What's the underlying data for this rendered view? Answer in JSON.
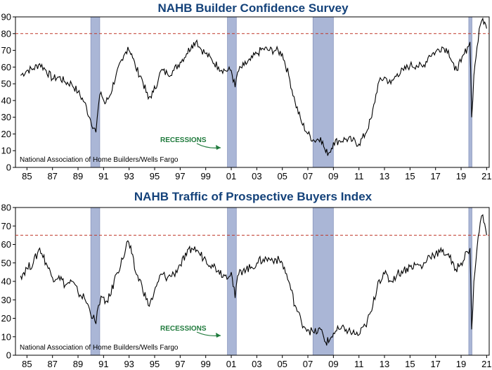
{
  "colors": {
    "title": "#14427a",
    "series": "#000000",
    "recession_fill": "#aab6d6",
    "reference_line": "#c0392b",
    "annotation": "#1f7a3c"
  },
  "chart_data": [
    {
      "type": "line",
      "title": "NAHB Builder Confidence Survey",
      "source": "National Association of Home Builders/Wells Fargo",
      "annotation": "RECESSIONS",
      "xlim": [
        1984.6,
        2021.7
      ],
      "ylim": [
        0,
        90
      ],
      "yticks": [
        0,
        10,
        20,
        30,
        40,
        50,
        60,
        70,
        80,
        90
      ],
      "xticks": [
        "85",
        "87",
        "89",
        "91",
        "93",
        "95",
        "97",
        "99",
        "01",
        "03",
        "05",
        "07",
        "09",
        "11",
        "13",
        "15",
        "17",
        "19",
        "21"
      ],
      "reference_line": 80,
      "recessions": [
        [
          1990.5,
          1991.2
        ],
        [
          2001.2,
          2001.9
        ],
        [
          2007.9,
          2009.5
        ],
        [
          2020.1,
          2020.35
        ]
      ],
      "series": [
        {
          "x": [
            1985,
            1985.5,
            1986,
            1986.5,
            1987,
            1987.5,
            1988,
            1988.5,
            1989,
            1989.5,
            1990,
            1990.4,
            1990.9,
            1991.1,
            1991.3,
            1991.6,
            1992,
            1992.5,
            1993,
            1993.4,
            1993.7,
            1994,
            1994.5,
            1995,
            1995.4,
            1995.8,
            1996,
            1996.5,
            1997,
            1997.5,
            1998,
            1998.4,
            1998.8,
            1999,
            1999.5,
            2000,
            2000.5,
            2001,
            2001.5,
            2001.8,
            2002,
            2002.5,
            2003,
            2003.5,
            2004,
            2004.5,
            2005,
            2005.5,
            2006,
            2006.5,
            2007,
            2007.5,
            2008,
            2008.5,
            2008.9,
            2009.2,
            2009.5,
            2010,
            2010.5,
            2011,
            2011.5,
            2012,
            2012.5,
            2013,
            2013.5,
            2014,
            2014.5,
            2015,
            2015.5,
            2016,
            2016.5,
            2017,
            2017.5,
            2018,
            2018.5,
            2019,
            2019.5,
            2020,
            2020.2,
            2020.33,
            2020.5,
            2020.75,
            2021,
            2021.2,
            2021.5
          ],
          "values": [
            55,
            58,
            59,
            62,
            58,
            53,
            54,
            51,
            50,
            45,
            39,
            30,
            21,
            37,
            45,
            38,
            43,
            56,
            64,
            72,
            68,
            60,
            53,
            41,
            45,
            53,
            58,
            56,
            58,
            63,
            68,
            73,
            76,
            72,
            68,
            64,
            60,
            58,
            58,
            48,
            57,
            61,
            64,
            68,
            71,
            70,
            70,
            68,
            55,
            39,
            27,
            20,
            16,
            18,
            9,
            9,
            15,
            16,
            17,
            16,
            14,
            20,
            30,
            50,
            54,
            50,
            56,
            58,
            61,
            61,
            60,
            67,
            69,
            72,
            70,
            58,
            63,
            72,
            75,
            30,
            55,
            72,
            85,
            89,
            83
          ]
        }
      ]
    },
    {
      "type": "line",
      "title": "NAHB Traffic of Prospective Buyers Index",
      "source": "National Association of Home Builders/Wells Fargo",
      "annotation": "RECESSIONS",
      "xlim": [
        1984.6,
        2021.7
      ],
      "ylim": [
        0,
        80
      ],
      "yticks": [
        0,
        10,
        20,
        30,
        40,
        50,
        60,
        70,
        80
      ],
      "xticks": [
        "85",
        "87",
        "89",
        "91",
        "93",
        "95",
        "97",
        "99",
        "01",
        "03",
        "05",
        "07",
        "09",
        "11",
        "13",
        "15",
        "17",
        "19",
        "21"
      ],
      "reference_line": 65,
      "recessions": [
        [
          1990.5,
          1991.2
        ],
        [
          2001.2,
          2001.9
        ],
        [
          2007.9,
          2009.5
        ],
        [
          2020.1,
          2020.35
        ]
      ],
      "series": [
        {
          "x": [
            1985,
            1985.5,
            1986,
            1986.5,
            1987,
            1987.5,
            1988,
            1988.5,
            1989,
            1989.5,
            1990,
            1990.4,
            1990.9,
            1991.1,
            1991.3,
            1991.6,
            1992,
            1992.5,
            1993,
            1993.4,
            1993.7,
            1994,
            1994.5,
            1995,
            1995.4,
            1995.8,
            1996,
            1996.5,
            1997,
            1997.5,
            1998,
            1998.4,
            1998.8,
            1999,
            1999.5,
            2000,
            2000.5,
            2001,
            2001.5,
            2001.8,
            2002,
            2002.5,
            2003,
            2003.5,
            2004,
            2004.5,
            2005,
            2005.5,
            2006,
            2006.5,
            2007,
            2007.5,
            2008,
            2008.5,
            2008.9,
            2009.2,
            2009.5,
            2010,
            2010.5,
            2011,
            2011.5,
            2012,
            2012.5,
            2013,
            2013.5,
            2014,
            2014.5,
            2015,
            2015.5,
            2016,
            2016.5,
            2017,
            2017.5,
            2018,
            2018.5,
            2019,
            2019.5,
            2020,
            2020.2,
            2020.33,
            2020.5,
            2020.75,
            2021,
            2021.2,
            2021.5
          ],
          "values": [
            43,
            47,
            50,
            58,
            50,
            42,
            43,
            38,
            40,
            34,
            31,
            25,
            17,
            27,
            32,
            28,
            32,
            44,
            52,
            62,
            55,
            45,
            38,
            27,
            32,
            40,
            44,
            42,
            44,
            49,
            54,
            58,
            57,
            55,
            52,
            49,
            46,
            43,
            45,
            31,
            43,
            47,
            47,
            50,
            52,
            52,
            52,
            50,
            40,
            27,
            18,
            14,
            12,
            14,
            7,
            8,
            12,
            14,
            14,
            12,
            11,
            16,
            24,
            40,
            44,
            40,
            44,
            46,
            48,
            49,
            48,
            54,
            55,
            56,
            55,
            46,
            50,
            56,
            58,
            14,
            40,
            58,
            72,
            76,
            65
          ]
        }
      ]
    }
  ]
}
